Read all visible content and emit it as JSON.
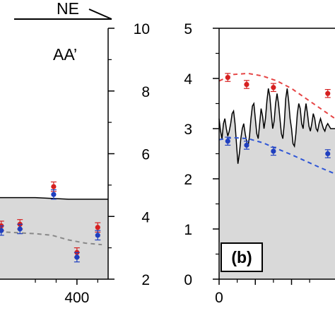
{
  "header": {
    "direction_label": "NE"
  },
  "chart_data": [
    {
      "type": "line",
      "panel_label": "AA’",
      "x_tick_labels": [
        "400"
      ],
      "right_axis": {
        "ylim": [
          2,
          10
        ],
        "tick_labels": [
          "2",
          "4",
          "6",
          "8",
          "10"
        ]
      },
      "xlim": [
        215,
        475
      ],
      "profile": {
        "x": [
          215,
          300,
          380,
          475
        ],
        "y": [
          4.6,
          4.6,
          4.55,
          4.55
        ]
      },
      "model_curve": {
        "x": [
          230,
          300,
          340,
          380,
          420,
          460
        ],
        "y": [
          3.5,
          3.45,
          3.4,
          3.25,
          3.15,
          3.1
        ]
      },
      "series": [
        {
          "x": [
            218,
            263,
            344,
            400,
            450
          ],
          "y": [
            3.7,
            3.75,
            4.95,
            2.85,
            3.65
          ],
          "err": 0.15
        },
        {
          "x": [
            218,
            263,
            344,
            400,
            450
          ],
          "y": [
            3.55,
            3.6,
            4.7,
            2.7,
            3.4
          ],
          "err": 0.15
        }
      ],
      "colors": {
        "red": "#d62020",
        "blue": "#1f3fbf",
        "fill": "#d9d9d9",
        "dashed": "#888888"
      }
    },
    {
      "type": "line",
      "panel_label": "(b)",
      "x_tick_labels": [
        "0"
      ],
      "left_axis": {
        "ylim": [
          0,
          5
        ],
        "tick_labels": [
          "0",
          "1",
          "2",
          "3",
          "4",
          "5"
        ]
      },
      "xlim": [
        0,
        160
      ],
      "profile": {
        "x": [
          0,
          2,
          4,
          6,
          8,
          10,
          12,
          14,
          16,
          18,
          20,
          22,
          24,
          26,
          28,
          30,
          32,
          34,
          36,
          38,
          40,
          42,
          44,
          46,
          48,
          50,
          52,
          54,
          56,
          58,
          60,
          62,
          64,
          66,
          68,
          70,
          72,
          74,
          76,
          78,
          80,
          82,
          84,
          86,
          88,
          90,
          92,
          94,
          96,
          98,
          100,
          102,
          104,
          106,
          108,
          110,
          112,
          114,
          116,
          118,
          120,
          122,
          124,
          126,
          128,
          130,
          132,
          134,
          136,
          138,
          140,
          142,
          144,
          146,
          148,
          150,
          152,
          154,
          156,
          158,
          160
        ],
        "y": [
          3.2,
          2.95,
          2.8,
          3.1,
          3.2,
          3.0,
          2.85,
          2.95,
          3.1,
          3.3,
          3.35,
          3.1,
          2.7,
          2.3,
          2.5,
          2.8,
          3.0,
          3.1,
          2.9,
          2.75,
          2.65,
          2.85,
          3.2,
          3.45,
          3.5,
          3.2,
          2.9,
          2.8,
          3.1,
          3.4,
          3.25,
          3.0,
          3.2,
          3.55,
          3.8,
          3.65,
          3.3,
          3.0,
          3.15,
          3.5,
          3.7,
          3.5,
          3.2,
          2.9,
          2.8,
          3.1,
          3.6,
          3.8,
          3.55,
          3.2,
          3.0,
          2.7,
          2.65,
          2.9,
          3.3,
          3.5,
          3.4,
          3.1,
          3.0,
          3.3,
          3.5,
          3.3,
          3.05,
          2.95,
          3.1,
          3.3,
          3.2,
          3.0,
          2.95,
          3.1,
          3.2,
          3.1,
          3.0,
          2.95,
          3.05,
          3.1,
          3.05,
          3.0,
          3.0,
          3.0,
          3.0
        ]
      },
      "model_curves": {
        "red": {
          "x": [
            0,
            20,
            40,
            60,
            80,
            100,
            120,
            140,
            160
          ],
          "y": [
            3.95,
            4.08,
            4.1,
            4.05,
            3.95,
            3.8,
            3.6,
            3.4,
            3.2
          ]
        },
        "blue": {
          "x": [
            0,
            20,
            40,
            60,
            80,
            100,
            120,
            140,
            160
          ],
          "y": [
            2.78,
            2.82,
            2.8,
            2.72,
            2.6,
            2.48,
            2.35,
            2.22,
            2.1
          ]
        }
      },
      "series": [
        {
          "x": [
            12,
            38,
            75,
            150
          ],
          "y": [
            4.02,
            3.88,
            3.82,
            3.7
          ],
          "err": 0.08
        },
        {
          "x": [
            12,
            38,
            75,
            150
          ],
          "y": [
            2.75,
            2.67,
            2.55,
            2.5
          ],
          "err": 0.08
        }
      ],
      "colors": {
        "red": "#d62020",
        "blue": "#1f3fbf",
        "fill": "#d9d9d9",
        "red_dash": "#e64545",
        "blue_dash": "#2f56d6"
      }
    }
  ]
}
